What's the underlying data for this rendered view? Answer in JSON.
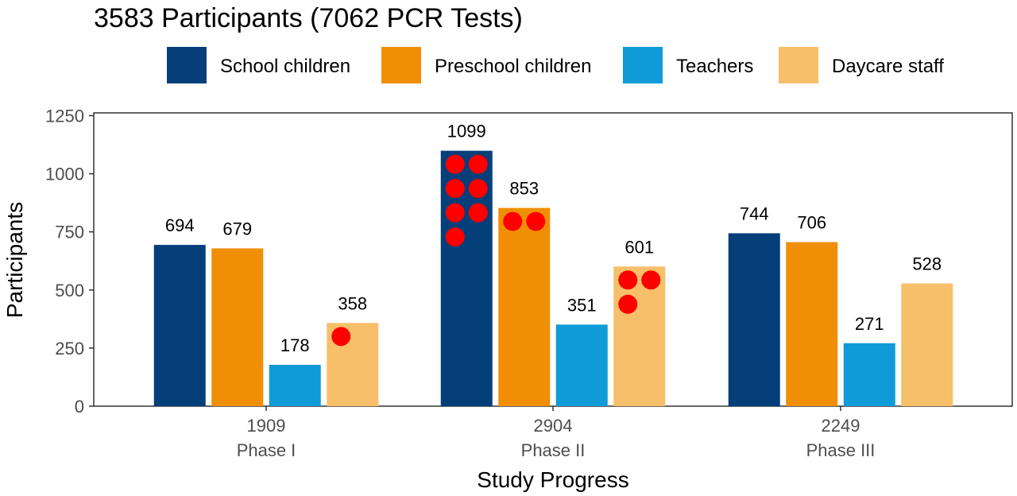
{
  "chart_data": {
    "type": "bar",
    "title": "3583 Participants (7062 PCR Tests)",
    "xlabel": "Study Progress",
    "ylabel": "Participants",
    "ylim": [
      0,
      1250
    ],
    "yticks": [
      0,
      250,
      500,
      750,
      1000,
      1250
    ],
    "categories": [
      {
        "total": "1909",
        "phase": "Phase I"
      },
      {
        "total": "2904",
        "phase": "Phase II"
      },
      {
        "total": "2249",
        "phase": "Phase III"
      }
    ],
    "series": [
      {
        "name": "School children",
        "color": "#053f7a",
        "values": [
          694,
          1099,
          744
        ],
        "marker_counts": [
          0,
          7,
          0
        ]
      },
      {
        "name": "Preschool children",
        "color": "#f08f05",
        "values": [
          679,
          853,
          706
        ],
        "marker_counts": [
          0,
          2,
          0
        ]
      },
      {
        "name": "Teachers",
        "color": "#0f9bd7",
        "values": [
          178,
          351,
          271
        ],
        "marker_counts": [
          0,
          0,
          0
        ]
      },
      {
        "name": "Daycare staff",
        "color": "#f7bf6a",
        "values": [
          358,
          601,
          528
        ],
        "marker_counts": [
          1,
          3,
          0
        ]
      }
    ],
    "marker_color": "#ff0000",
    "legend_position": "top",
    "grid": false
  }
}
